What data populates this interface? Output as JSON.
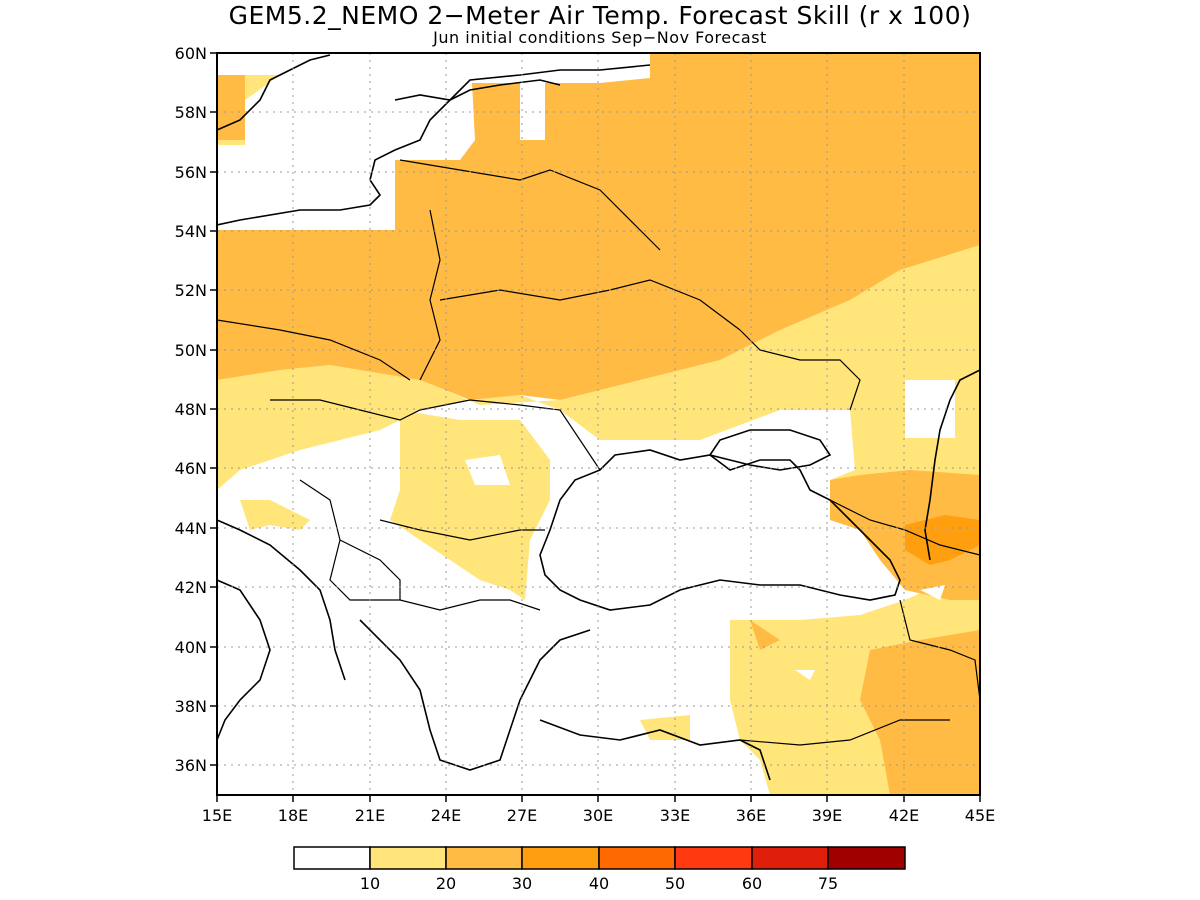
{
  "title": "GEM5.2_NEMO 2−Meter Air Temp. Forecast Skill (r x 100)",
  "subtitle": "Jun initial conditions  Sep−Nov Forecast",
  "map": {
    "lon_range": [
      15,
      45
    ],
    "lat_range": [
      35,
      60
    ],
    "lon_ticks": [
      "15E",
      "18E",
      "21E",
      "24E",
      "27E",
      "30E",
      "33E",
      "36E",
      "39E",
      "42E",
      "45E"
    ],
    "lat_ticks": [
      "36N",
      "38N",
      "40N",
      "42N",
      "44N",
      "46N",
      "48N",
      "50N",
      "52N",
      "54N",
      "56N",
      "58N",
      "60N"
    ],
    "grid": "dotted"
  },
  "colorbar": {
    "labels": [
      "10",
      "20",
      "30",
      "40",
      "50",
      "60",
      "75"
    ],
    "colors": [
      "#ffffff",
      "#ffe57a",
      "#ffbb44",
      "#ff9f10",
      "#ff6a00",
      "#ff3a10",
      "#e01e0c",
      "#a00000"
    ]
  }
}
